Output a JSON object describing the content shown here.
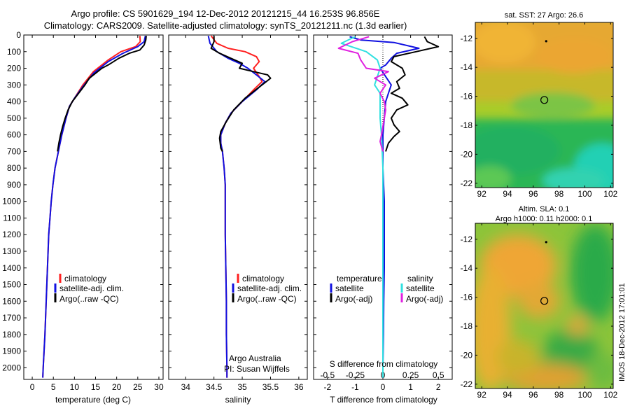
{
  "header": {
    "line1": "Argo profile: CS 5901629_194 12-Dec-2012 20121215_44 16.253S 96.856E",
    "line2": "Climatology: CARS2009. Satellite-adjusted climatology: synTS_20121211.nc (1.3d earlier)"
  },
  "colors": {
    "climatology": "#ff2020",
    "satellite": "#1010e0",
    "argo": "#000000",
    "sat_salinity": "#30e0e0",
    "argo_salinity_diff": "#e020e0"
  },
  "legend": {
    "climatology": "climatology",
    "satellite_adj": "satellite-adj. clim.",
    "argo_raw": "Argo(..raw -QC)",
    "temperature_head": "temperature",
    "salinity_head": "salinity",
    "satellite": "satellite",
    "argo_adj": "Argo(-adj)"
  },
  "credits": {
    "line1": "Argo Australia",
    "line2": "PI: Susan Wijffels"
  },
  "side_text": "IMOS 18-Dec-2012 17:01:01",
  "chart_data": [
    {
      "type": "line",
      "id": "temperature",
      "xlabel": "temperature (deg C)",
      "ylabel": "",
      "xlim": [
        -2,
        31
      ],
      "ylim": [
        2070,
        0
      ],
      "xticks": [
        0,
        5,
        10,
        15,
        20,
        25,
        30
      ],
      "yticks": [
        0,
        100,
        200,
        300,
        400,
        500,
        600,
        700,
        800,
        900,
        1000,
        1100,
        1200,
        1300,
        1400,
        1500,
        1600,
        1700,
        1800,
        1900,
        2000
      ],
      "series": [
        {
          "name": "climatology",
          "color": "#ff2020",
          "points": [
            [
              25.5,
              5
            ],
            [
              25.6,
              40
            ],
            [
              24.5,
              70
            ],
            [
              21,
              100
            ],
            [
              18,
              150
            ],
            [
              14.5,
              220
            ],
            [
              12,
              300
            ],
            [
              10,
              380
            ],
            [
              8.8,
              430
            ],
            [
              8,
              500
            ],
            [
              7,
              600
            ],
            [
              6.2,
              700
            ],
            [
              5.4,
              800
            ],
            [
              4.9,
              900
            ],
            [
              4.5,
              1000
            ],
            [
              4.2,
              1100
            ],
            [
              3.9,
              1200
            ],
            [
              3.6,
              1400
            ],
            [
              3.3,
              1600
            ],
            [
              3.0,
              1800
            ],
            [
              2.6,
              2000
            ],
            [
              2.5,
              2060
            ]
          ]
        },
        {
          "name": "satellite-adj. clim.",
          "color": "#1010e0",
          "points": [
            [
              26.8,
              5
            ],
            [
              26.5,
              40
            ],
            [
              25,
              70
            ],
            [
              21.5,
              110
            ],
            [
              18,
              160
            ],
            [
              14.5,
              230
            ],
            [
              12,
              310
            ],
            [
              10,
              380
            ],
            [
              8.8,
              430
            ],
            [
              8,
              500
            ],
            [
              7,
              600
            ],
            [
              6.2,
              700
            ],
            [
              5.4,
              800
            ],
            [
              4.9,
              900
            ],
            [
              4.5,
              1000
            ],
            [
              4.2,
              1100
            ],
            [
              3.9,
              1200
            ],
            [
              3.6,
              1400
            ],
            [
              3.3,
              1600
            ],
            [
              3.0,
              1800
            ],
            [
              2.6,
              2000
            ],
            [
              2.5,
              2060
            ]
          ]
        },
        {
          "name": "Argo(..raw -QC)",
          "color": "#000000",
          "points": [
            [
              27,
              5
            ],
            [
              26.9,
              30
            ],
            [
              26.5,
              60
            ],
            [
              25.5,
              90
            ],
            [
              23,
              110
            ],
            [
              20.5,
              140
            ],
            [
              18,
              180
            ],
            [
              16.5,
              200
            ],
            [
              15,
              230
            ],
            [
              13.5,
              260
            ],
            [
              12.5,
              300
            ],
            [
              11,
              350
            ],
            [
              9.5,
              400
            ],
            [
              8.5,
              450
            ],
            [
              7.8,
              500
            ],
            [
              7.2,
              550
            ],
            [
              6.7,
              600
            ],
            [
              6.3,
              650
            ],
            [
              6,
              700
            ]
          ]
        }
      ]
    },
    {
      "type": "line",
      "id": "salinity",
      "xlabel": "salinity",
      "ylabel": "",
      "xlim": [
        33.7,
        36.15
      ],
      "ylim": [
        2070,
        0
      ],
      "xticks": [
        34,
        34.5,
        35,
        35.5,
        36
      ],
      "series": [
        {
          "name": "climatology",
          "color": "#ff2020",
          "points": [
            [
              34.45,
              5
            ],
            [
              34.55,
              50
            ],
            [
              34.75,
              80
            ],
            [
              35.05,
              100
            ],
            [
              35.25,
              130
            ],
            [
              35.3,
              160
            ],
            [
              35.2,
              200
            ],
            [
              35.3,
              250
            ],
            [
              35.35,
              280
            ],
            [
              35.2,
              330
            ],
            [
              35.0,
              400
            ],
            [
              34.8,
              470
            ],
            [
              34.7,
              530
            ],
            [
              34.62,
              600
            ],
            [
              34.62,
              650
            ],
            [
              34.65,
              700
            ],
            [
              34.68,
              800
            ],
            [
              34.7,
              900
            ],
            [
              34.7,
              1000
            ],
            [
              34.7,
              1200
            ],
            [
              34.71,
              1400
            ],
            [
              34.72,
              1600
            ],
            [
              34.72,
              1800
            ],
            [
              34.73,
              2000
            ],
            [
              34.73,
              2060
            ]
          ]
        },
        {
          "name": "satellite-adj. clim.",
          "color": "#1010e0",
          "points": [
            [
              34.4,
              5
            ],
            [
              34.43,
              50
            ],
            [
              34.55,
              100
            ],
            [
              34.75,
              140
            ],
            [
              34.95,
              170
            ],
            [
              35.1,
              200
            ],
            [
              35.25,
              240
            ],
            [
              35.4,
              280
            ],
            [
              35.25,
              330
            ],
            [
              35.0,
              400
            ],
            [
              34.8,
              470
            ],
            [
              34.7,
              530
            ],
            [
              34.62,
              600
            ],
            [
              34.62,
              650
            ],
            [
              34.65,
              700
            ],
            [
              34.68,
              800
            ],
            [
              34.7,
              900
            ],
            [
              34.7,
              1000
            ],
            [
              34.7,
              1200
            ],
            [
              34.71,
              1400
            ],
            [
              34.72,
              1600
            ],
            [
              34.72,
              1800
            ],
            [
              34.73,
              2000
            ],
            [
              34.73,
              2060
            ]
          ]
        },
        {
          "name": "Argo(..raw -QC)",
          "color": "#000000",
          "points": [
            [
              34.5,
              5
            ],
            [
              34.5,
              40
            ],
            [
              34.45,
              80
            ],
            [
              34.6,
              110
            ],
            [
              34.8,
              140
            ],
            [
              35.0,
              170
            ],
            [
              34.95,
              200
            ],
            [
              35.2,
              220
            ],
            [
              35.45,
              240
            ],
            [
              35.5,
              260
            ],
            [
              35.35,
              300
            ],
            [
              35.2,
              340
            ],
            [
              35.05,
              380
            ],
            [
              34.85,
              450
            ],
            [
              34.72,
              520
            ],
            [
              34.62,
              580
            ],
            [
              34.6,
              620
            ],
            [
              34.62,
              680
            ],
            [
              34.65,
              700
            ]
          ]
        }
      ]
    },
    {
      "type": "line",
      "id": "differences",
      "xlabel": "T difference from climatology",
      "xlabel_top": "S difference from climatology",
      "xlim": [
        -2.5,
        2.5
      ],
      "ylim": [
        2070,
        0
      ],
      "xticks": [
        -2,
        -1,
        0,
        1,
        2
      ],
      "xticks_s": [
        -0.5,
        -0.25,
        0,
        0.25,
        0.5
      ],
      "series": [
        {
          "name": "temperature satellite",
          "color": "#1010e0",
          "points": [
            [
              -1.2,
              10
            ],
            [
              -0.8,
              30
            ],
            [
              0.4,
              45
            ],
            [
              1.3,
              80
            ],
            [
              0.5,
              110
            ],
            [
              0.3,
              140
            ],
            [
              0.1,
              180
            ],
            [
              -0.1,
              200
            ],
            [
              0.1,
              250
            ],
            [
              0.3,
              300
            ],
            [
              0.2,
              350
            ],
            [
              0.1,
              400
            ],
            [
              0.05,
              500
            ],
            [
              0,
              600
            ],
            [
              0,
              800
            ],
            [
              0.05,
              1000
            ],
            [
              0.05,
              1200
            ],
            [
              0.05,
              1400
            ],
            [
              0.03,
              1600
            ],
            [
              0.02,
              1800
            ],
            [
              0,
              2000
            ],
            [
              0,
              2060
            ]
          ]
        },
        {
          "name": "temperature Argo(-adj)",
          "color": "#000000",
          "points": [
            [
              1.5,
              10
            ],
            [
              1.6,
              40
            ],
            [
              2.0,
              70
            ],
            [
              1.2,
              100
            ],
            [
              0.4,
              130
            ],
            [
              0.3,
              160
            ],
            [
              0.7,
              200
            ],
            [
              0.8,
              240
            ],
            [
              0.5,
              280
            ],
            [
              0.6,
              320
            ],
            [
              0.3,
              350
            ],
            [
              0.7,
              380
            ],
            [
              0.9,
              420
            ],
            [
              0.5,
              450
            ],
            [
              0.3,
              500
            ],
            [
              0.4,
              540
            ],
            [
              0.6,
              580
            ],
            [
              0.4,
              610
            ],
            [
              0.2,
              650
            ],
            [
              0.1,
              700
            ]
          ]
        },
        {
          "name": "salinity satellite",
          "color": "#30e0e0",
          "points": [
            [
              -1.0,
              10
            ],
            [
              -1.5,
              50
            ],
            [
              -0.6,
              100
            ],
            [
              -0.2,
              150
            ],
            [
              -0.1,
              200
            ],
            [
              -0.2,
              250
            ],
            [
              -0.3,
              300
            ],
            [
              -0.1,
              350
            ],
            [
              -0.1,
              400
            ],
            [
              -0.1,
              500
            ],
            [
              -0.05,
              600
            ],
            [
              0,
              800
            ],
            [
              0,
              1000
            ],
            [
              0,
              1200
            ],
            [
              0,
              1400
            ],
            [
              0,
              1600
            ],
            [
              0,
              1800
            ],
            [
              0,
              2000
            ],
            [
              0,
              2060
            ]
          ]
        },
        {
          "name": "salinity Argo(-adj)",
          "color": "#e020e0",
          "points": [
            [
              -0.5,
              10
            ],
            [
              -1.1,
              40
            ],
            [
              -1.6,
              80
            ],
            [
              -0.9,
              110
            ],
            [
              -0.8,
              150
            ],
            [
              -0.6,
              200
            ],
            [
              0.2,
              220
            ],
            [
              -0.3,
              260
            ],
            [
              0.1,
              300
            ],
            [
              -0.1,
              350
            ],
            [
              0.05,
              400
            ],
            [
              0.1,
              450
            ],
            [
              0.05,
              500
            ],
            [
              -0.05,
              600
            ],
            [
              -0.1,
              640
            ],
            [
              0,
              700
            ]
          ]
        }
      ]
    },
    {
      "type": "heatmap",
      "id": "sst_map",
      "title": "sat. SST: 27 Argo: 26.6",
      "xlim": [
        91.5,
        102.2
      ],
      "ylim": [
        -22.3,
        -10.9
      ],
      "xticks": [
        92,
        94,
        96,
        98,
        100,
        102
      ],
      "yticks": [
        -12,
        -14,
        -16,
        -18,
        -20,
        -22
      ],
      "argo_position": [
        96.856,
        -16.253
      ],
      "previous_position": [
        97.0,
        -12.2
      ]
    },
    {
      "type": "heatmap",
      "id": "sla_map",
      "title": "Altim. SLA: 0.1",
      "subtitle": "Argo h1000: 0.11 h2000: 0.1",
      "xlim": [
        91.5,
        102.2
      ],
      "ylim": [
        -22.3,
        -10.9
      ],
      "xticks": [
        92,
        94,
        96,
        98,
        100,
        102
      ],
      "yticks": [
        -12,
        -14,
        -16,
        -18,
        -20,
        -22
      ],
      "argo_position": [
        96.856,
        -16.253
      ],
      "previous_position": [
        97.0,
        -12.2
      ]
    }
  ]
}
